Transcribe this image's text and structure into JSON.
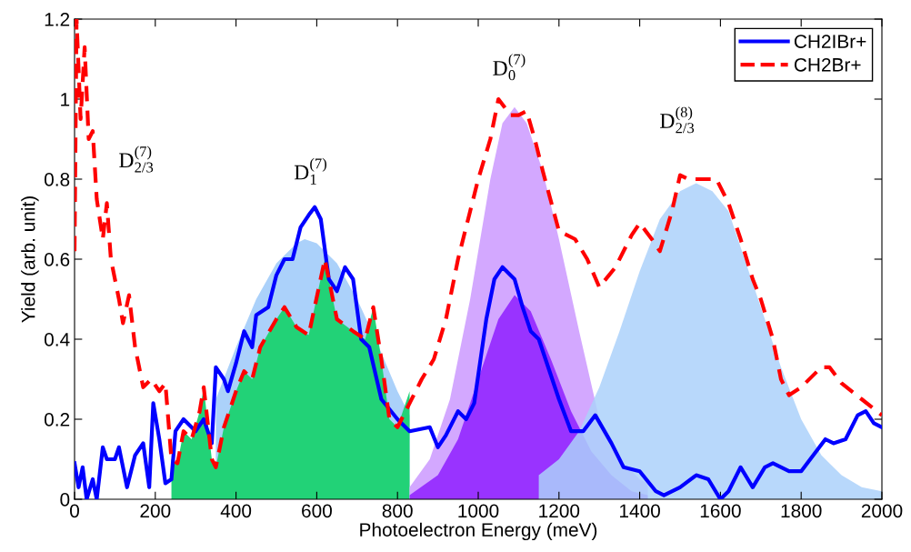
{
  "chart_data": {
    "type": "line",
    "xlabel": "Photoelectron Energy (meV)",
    "ylabel": "Yield (arb. unit)",
    "xlim": [
      0,
      2000
    ],
    "xticks": [
      0,
      200,
      400,
      600,
      800,
      1000,
      1200,
      1400,
      1600,
      1800,
      2000
    ],
    "ylim": [
      0,
      1.2
    ],
    "yticks": [
      0,
      0.2,
      0.4,
      0.6,
      0.8,
      1,
      1.2
    ],
    "grid": false,
    "legend": "top right",
    "series": [
      {
        "type": "area",
        "color": "#abd1fa",
        "x": [
          350,
          400,
          450,
          500,
          550,
          570,
          600,
          650,
          700,
          750,
          800,
          830
        ],
        "values": [
          0.25,
          0.38,
          0.5,
          0.59,
          0.64,
          0.65,
          0.64,
          0.59,
          0.5,
          0.39,
          0.27,
          0.21
        ]
      },
      {
        "type": "area",
        "color": "#22d277",
        "x": [
          240,
          255,
          270,
          290,
          310,
          320,
          340,
          350,
          370,
          400,
          420,
          440,
          460,
          500,
          520,
          550,
          580,
          620,
          650,
          690,
          720,
          740,
          760,
          780,
          800,
          830
        ],
        "values": [
          0.1,
          0.09,
          0.17,
          0.15,
          0.22,
          0.28,
          0.1,
          0.08,
          0.18,
          0.27,
          0.32,
          0.3,
          0.38,
          0.45,
          0.48,
          0.43,
          0.41,
          0.6,
          0.45,
          0.42,
          0.4,
          0.48,
          0.35,
          0.2,
          0.18,
          0.27
        ]
      },
      {
        "type": "area",
        "color": "#d3a8ff",
        "x": [
          830,
          880,
          930,
          980,
          1030,
          1060,
          1090,
          1120,
          1160,
          1200,
          1250,
          1300,
          1350,
          1400,
          1420
        ],
        "values": [
          0.03,
          0.1,
          0.25,
          0.5,
          0.8,
          0.94,
          0.98,
          0.94,
          0.82,
          0.65,
          0.42,
          0.2,
          0.1,
          0.05,
          0.04
        ]
      },
      {
        "type": "area",
        "color": "#9933ff",
        "x": [
          830,
          900,
          950,
          1000,
          1050,
          1090,
          1130,
          1180,
          1230,
          1280,
          1330,
          1380,
          1420
        ],
        "values": [
          0.01,
          0.06,
          0.15,
          0.3,
          0.45,
          0.51,
          0.47,
          0.35,
          0.22,
          0.12,
          0.06,
          0.02,
          0.01
        ]
      },
      {
        "type": "area",
        "color": "#abd1fa",
        "x": [
          1150,
          1200,
          1250,
          1300,
          1350,
          1400,
          1450,
          1500,
          1540,
          1580,
          1620,
          1660,
          1700,
          1750,
          1800,
          1850,
          1900,
          1950,
          2000
        ],
        "values": [
          0.06,
          0.1,
          0.17,
          0.28,
          0.42,
          0.57,
          0.7,
          0.77,
          0.79,
          0.77,
          0.72,
          0.6,
          0.48,
          0.33,
          0.2,
          0.11,
          0.06,
          0.03,
          0.02
        ]
      },
      {
        "name": "CH2IBr+",
        "color": "#0000ff",
        "line_style": "solid",
        "x": [
          0,
          10,
          20,
          30,
          45,
          55,
          70,
          80,
          100,
          110,
          130,
          150,
          170,
          185,
          195,
          210,
          225,
          240,
          250,
          270,
          300,
          320,
          340,
          350,
          370,
          380,
          400,
          420,
          440,
          450,
          480,
          500,
          520,
          540,
          560,
          580,
          595,
          610,
          630,
          650,
          670,
          690,
          710,
          730,
          760,
          800,
          830,
          880,
          900,
          920,
          950,
          970,
          990,
          1020,
          1040,
          1060,
          1090,
          1110,
          1130,
          1150,
          1200,
          1230,
          1260,
          1290,
          1330,
          1360,
          1400,
          1440,
          1460,
          1500,
          1540,
          1570,
          1600,
          1620,
          1650,
          1680,
          1710,
          1730,
          1770,
          1800,
          1860,
          1880,
          1910,
          1940,
          1960,
          1980,
          2000
        ],
        "values": [
          0.09,
          0.03,
          0.08,
          0.0,
          0.05,
          0.0,
          0.13,
          0.1,
          0.1,
          0.13,
          0.03,
          0.11,
          0.14,
          0.03,
          0.24,
          0.15,
          0.04,
          0.05,
          0.17,
          0.2,
          0.17,
          0.2,
          0.14,
          0.33,
          0.3,
          0.27,
          0.34,
          0.42,
          0.38,
          0.46,
          0.48,
          0.56,
          0.6,
          0.6,
          0.68,
          0.71,
          0.73,
          0.7,
          0.55,
          0.52,
          0.58,
          0.55,
          0.4,
          0.38,
          0.25,
          0.2,
          0.17,
          0.18,
          0.13,
          0.16,
          0.22,
          0.2,
          0.24,
          0.45,
          0.55,
          0.58,
          0.55,
          0.48,
          0.42,
          0.4,
          0.25,
          0.17,
          0.17,
          0.21,
          0.14,
          0.08,
          0.07,
          0.02,
          0.01,
          0.03,
          0.06,
          0.05,
          0.0,
          0.02,
          0.08,
          0.03,
          0.08,
          0.09,
          0.07,
          0.07,
          0.15,
          0.14,
          0.15,
          0.21,
          0.22,
          0.19,
          0.18
        ]
      },
      {
        "name": "CH2Br+",
        "color": "#ff0000",
        "line_style": "dashed",
        "x": [
          0,
          5,
          15,
          25,
          35,
          45,
          55,
          70,
          80,
          90,
          110,
          120,
          135,
          150,
          170,
          190,
          210,
          225,
          240,
          255,
          270,
          290,
          310,
          320,
          340,
          350,
          370,
          400,
          420,
          440,
          460,
          500,
          520,
          550,
          580,
          620,
          650,
          690,
          720,
          740,
          760,
          780,
          800,
          830,
          860,
          890,
          920,
          950,
          980,
          1000,
          1030,
          1050,
          1080,
          1100,
          1120,
          1140,
          1160,
          1200,
          1240,
          1270,
          1300,
          1340,
          1380,
          1400,
          1430,
          1450,
          1480,
          1500,
          1520,
          1560,
          1590,
          1620,
          1650,
          1680,
          1700,
          1730,
          1750,
          1770,
          1800,
          1850,
          1870,
          1900,
          1950,
          2000
        ],
        "values": [
          0.62,
          1.2,
          0.95,
          1.13,
          0.9,
          0.92,
          0.75,
          0.65,
          0.74,
          0.6,
          0.5,
          0.44,
          0.51,
          0.38,
          0.28,
          0.3,
          0.27,
          0.29,
          0.1,
          0.09,
          0.17,
          0.15,
          0.22,
          0.28,
          0.1,
          0.08,
          0.18,
          0.27,
          0.32,
          0.3,
          0.38,
          0.45,
          0.48,
          0.43,
          0.41,
          0.6,
          0.45,
          0.42,
          0.4,
          0.48,
          0.35,
          0.2,
          0.18,
          0.24,
          0.3,
          0.35,
          0.45,
          0.6,
          0.72,
          0.8,
          0.9,
          1.0,
          0.96,
          0.96,
          0.97,
          0.9,
          0.82,
          0.67,
          0.65,
          0.6,
          0.53,
          0.58,
          0.66,
          0.69,
          0.65,
          0.62,
          0.72,
          0.81,
          0.8,
          0.8,
          0.8,
          0.74,
          0.65,
          0.55,
          0.5,
          0.4,
          0.3,
          0.26,
          0.28,
          0.33,
          0.33,
          0.29,
          0.25,
          0.21
        ]
      }
    ],
    "annotations": [
      "D$^{(7)}$$_{2/3}$",
      "D$^{(7)}$$_{1}$",
      "D$^{(7)}$$_{0}$",
      "D$^{(8)}$$_{2/3}$"
    ]
  }
}
